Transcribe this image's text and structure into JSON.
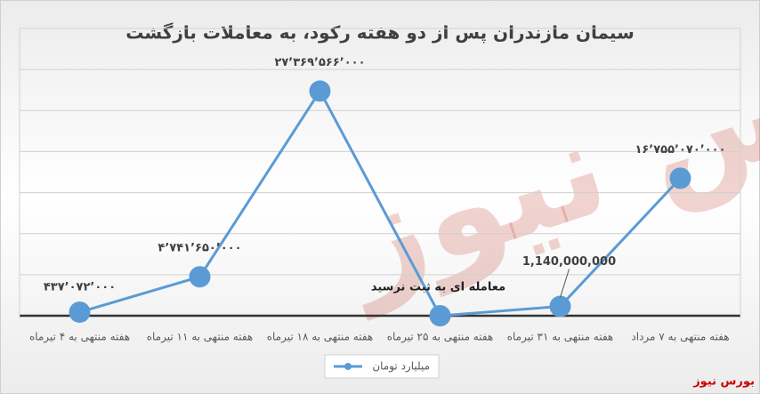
{
  "chart_data": {
    "type": "line",
    "title": "سیمان مازندران پس از دو هفته رکود، به معاملات بازگشت",
    "categories": [
      "هفته منتهی به ۴ تیرماه",
      "هفته منتهی به ۱۱ تیرماه",
      "هفته منتهی به ۱۸ تیرماه",
      "هفته منتهی به ۲۵ تیرماه",
      "هفته منتهی به ۳۱ تیرماه",
      "هفته منتهی به ۷ مرداد"
    ],
    "series": [
      {
        "name": "میلیارد تومان",
        "color": "#5b9bd5",
        "values": [
          437072000,
          4741650000,
          27369566000,
          0,
          1140000000,
          16755070000
        ],
        "value_labels": [
          "۴۳۷٬۰۷۲٬۰۰۰",
          "۴٬۷۴۱٬۶۵۰٬۰۰۰",
          "۲۷٬۳۶۹٬۵۶۶٬۰۰۰",
          null,
          "1,140,000,000",
          "۱۶٬۷۵۵٬۰۷۰٬۰۰۰"
        ]
      }
    ],
    "annotation": "معامله ای به ثبت نرسید",
    "source": "بورس نیوز",
    "ylim": [
      0,
      35000000000
    ],
    "yticks": [
      0,
      5000000000,
      10000000000,
      15000000000,
      20000000000,
      25000000000,
      30000000000,
      35000000000
    ],
    "grid": true
  }
}
